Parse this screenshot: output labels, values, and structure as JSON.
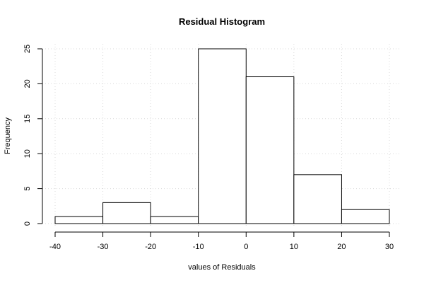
{
  "chart_data": {
    "type": "bar",
    "title": "Residual Histogram",
    "xlabel": "values of Residuals",
    "ylabel": "Frequency",
    "bins": [
      {
        "from": -40,
        "to": -30,
        "count": 1
      },
      {
        "from": -30,
        "to": -20,
        "count": 3
      },
      {
        "from": -20,
        "to": -10,
        "count": 1
      },
      {
        "from": -10,
        "to": 0,
        "count": 25
      },
      {
        "from": 0,
        "to": 10,
        "count": 21
      },
      {
        "from": 10,
        "to": 20,
        "count": 7
      },
      {
        "from": 20,
        "to": 30,
        "count": 2
      }
    ],
    "xlim": [
      -40,
      30
    ],
    "ylim": [
      0,
      25
    ],
    "x_ticks": [
      "-40",
      "-30",
      "-20",
      "-10",
      "0",
      "10",
      "20",
      "30"
    ],
    "y_ticks": [
      "0",
      "5",
      "10",
      "15",
      "20",
      "25"
    ],
    "grid": true
  }
}
